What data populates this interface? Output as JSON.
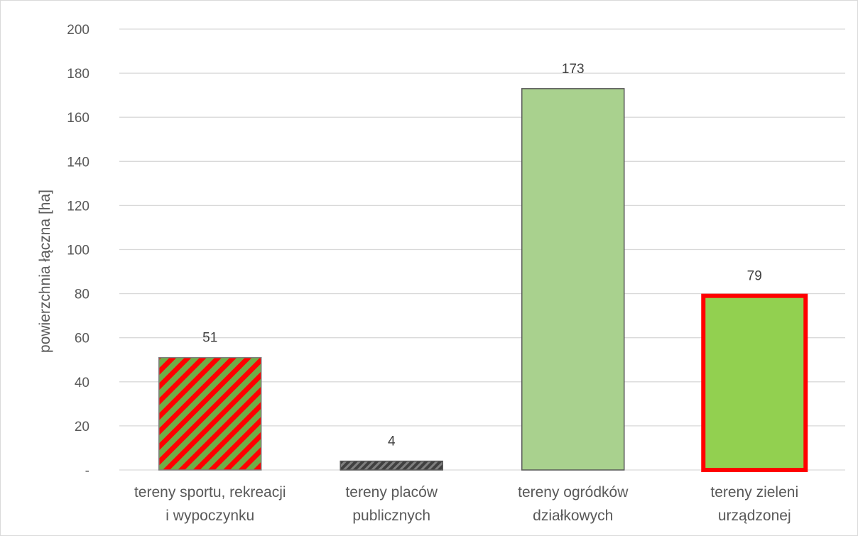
{
  "chart_data": {
    "type": "bar",
    "ylabel": "powierzchnia łączna [ha]",
    "xlabel": "",
    "ylim": [
      0,
      200
    ],
    "yticks": [
      0,
      20,
      40,
      60,
      80,
      100,
      120,
      140,
      160,
      180,
      200
    ],
    "yticklabels": [
      "-",
      "20",
      "40",
      "60",
      "80",
      "100",
      "120",
      "140",
      "160",
      "180",
      "200"
    ],
    "grid": true,
    "categories": [
      [
        "tereny sportu, rekreacji",
        "i wypoczynku"
      ],
      [
        "tereny placów",
        "publicznych"
      ],
      [
        "tereny ogródków",
        "działkowych"
      ],
      [
        "tereny zieleni",
        "urządzonej"
      ]
    ],
    "values": [
      51,
      4,
      173,
      79
    ],
    "data_labels": [
      "51",
      "4",
      "173",
      "79"
    ],
    "bar_styles": [
      {
        "fill": "hatch-red-green",
        "hatch_a": "#70ad47",
        "hatch_b": "#ff0000",
        "stroke": "#7f7f7f"
      },
      {
        "fill": "hatch-dark",
        "hatch_a": "#404040",
        "hatch_b": "#7f7f7f",
        "stroke": "#595959"
      },
      {
        "fill": "solid",
        "color": "#a9d18e",
        "stroke": "#595959"
      },
      {
        "fill": "solid",
        "color": "#92d050",
        "stroke": "#ff0000"
      }
    ],
    "colors": {
      "grid": "#d9d9d9",
      "axis": "#d9d9d9",
      "text": "#595959"
    }
  }
}
